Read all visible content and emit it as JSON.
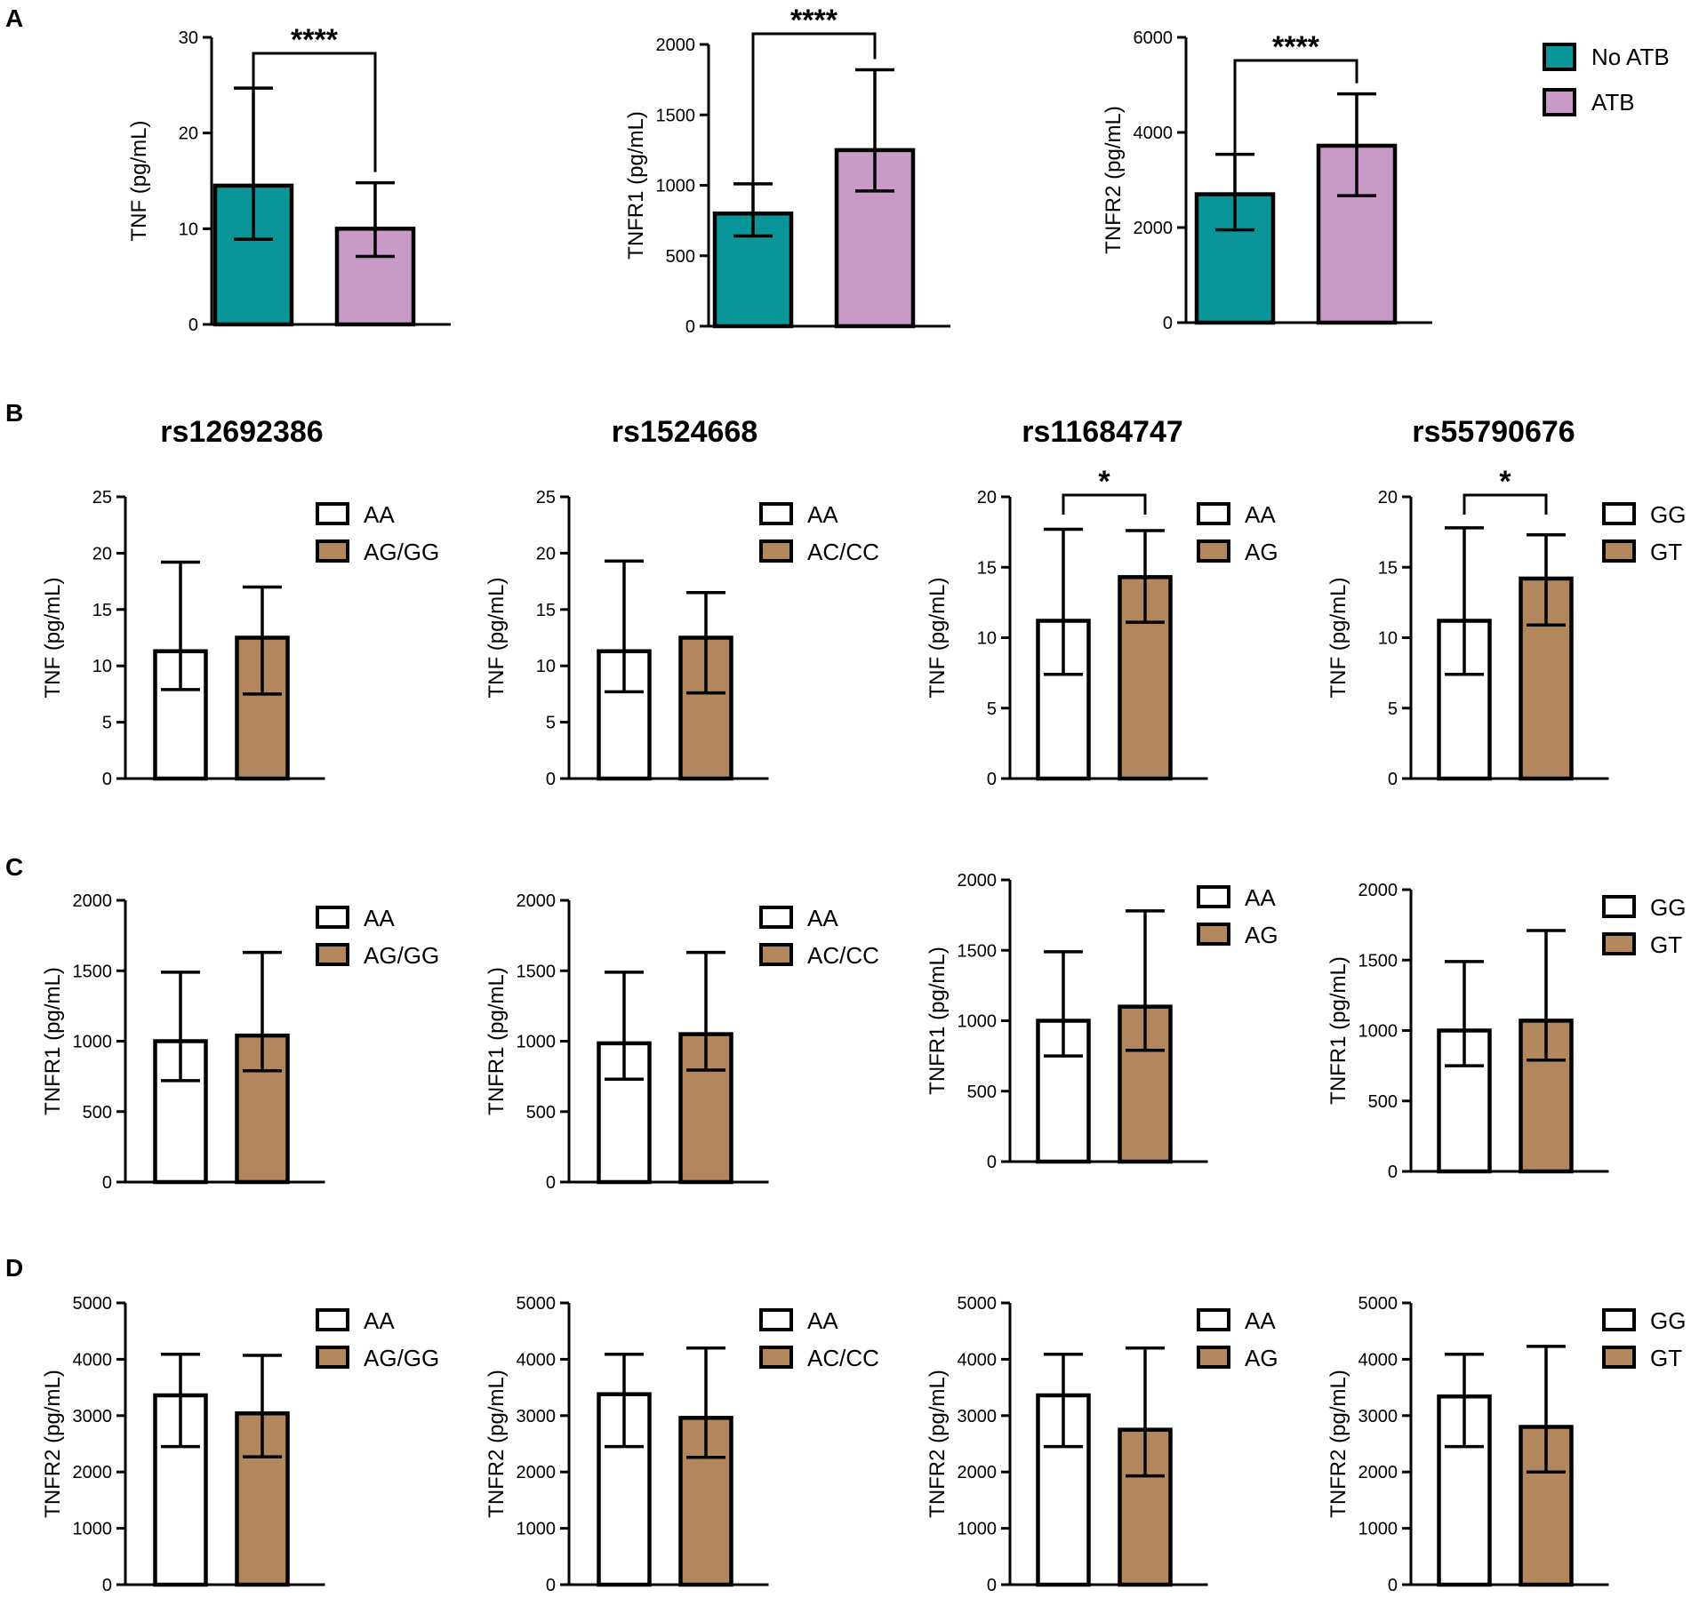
{
  "colors": {
    "no_atb": "#0a9599",
    "atb": "#c99ac8",
    "genotype_ref": "#ffffff",
    "genotype_alt": "#b2875e",
    "ink": "#000000"
  },
  "panels": {
    "A": "A",
    "B": "B",
    "C": "C",
    "D": "D"
  },
  "snp_titles": [
    "rs12692386",
    "rs1524668",
    "rs11684747",
    "rs55790676"
  ],
  "legend_A": [
    {
      "label": "No ATB",
      "color": "#0a9599"
    },
    {
      "label": "ATB",
      "color": "#c99ac8"
    }
  ],
  "chart_data": [
    {
      "id": "A1",
      "type": "bar",
      "title": "",
      "xlabel": "",
      "ylabel": "TNF (pg/mL)",
      "ylim": [
        0,
        30
      ],
      "yticks": [
        "0",
        "10",
        "20",
        "30"
      ],
      "categories": [
        "No ATB",
        "ATB"
      ],
      "values": [
        14.5,
        10
      ],
      "error_low": [
        8.9,
        7.1
      ],
      "error_high": [
        24.7,
        14.8
      ],
      "colors": [
        "#0a9599",
        "#c99ac8"
      ],
      "significance": "****",
      "legend": []
    },
    {
      "id": "A2",
      "type": "bar",
      "title": "",
      "xlabel": "",
      "ylabel": "TNFR1 (pg/mL)",
      "ylim": [
        0,
        2000
      ],
      "yticks": [
        "0",
        "500",
        "1000",
        "1500",
        "2000"
      ],
      "categories": [
        "No ATB",
        "ATB"
      ],
      "values": [
        800,
        1250
      ],
      "error_low": [
        640,
        960
      ],
      "error_high": [
        1010,
        1820
      ],
      "colors": [
        "#0a9599",
        "#c99ac8"
      ],
      "significance": "****",
      "legend": []
    },
    {
      "id": "A3",
      "type": "bar",
      "title": "",
      "xlabel": "",
      "ylabel": "TNFR2 (pg/mL)",
      "ylim": [
        0,
        6000
      ],
      "yticks": [
        "0",
        "2000",
        "4000",
        "6000"
      ],
      "categories": [
        "No ATB",
        "ATB"
      ],
      "values": [
        2700,
        3720
      ],
      "error_low": [
        1950,
        2670
      ],
      "error_high": [
        3540,
        4810
      ],
      "colors": [
        "#0a9599",
        "#c99ac8"
      ],
      "significance": "****",
      "legend": []
    },
    {
      "id": "B1",
      "type": "bar",
      "title": "rs12692386",
      "xlabel": "",
      "ylabel": "TNF (pg/mL)",
      "ylim": [
        0,
        25
      ],
      "yticks": [
        "0",
        "5",
        "10",
        "15",
        "20",
        "25"
      ],
      "categories": [
        "AA",
        "AG/GG"
      ],
      "values": [
        11.3,
        12.5
      ],
      "error_low": [
        7.9,
        7.5
      ],
      "error_high": [
        19.2,
        17.0
      ],
      "colors": [
        "#ffffff",
        "#b2875e"
      ],
      "significance": "",
      "legend": [
        {
          "label": "AA",
          "color": "#ffffff"
        },
        {
          "label": "AG/GG",
          "color": "#b2875e"
        }
      ]
    },
    {
      "id": "B2",
      "type": "bar",
      "title": "rs1524668",
      "xlabel": "",
      "ylabel": "TNF (pg/mL)",
      "ylim": [
        0,
        25
      ],
      "yticks": [
        "0",
        "5",
        "10",
        "15",
        "20",
        "25"
      ],
      "categories": [
        "AA",
        "AC/CC"
      ],
      "values": [
        11.3,
        12.5
      ],
      "error_low": [
        7.7,
        7.6
      ],
      "error_high": [
        19.3,
        16.5
      ],
      "colors": [
        "#ffffff",
        "#b2875e"
      ],
      "significance": "",
      "legend": [
        {
          "label": "AA",
          "color": "#ffffff"
        },
        {
          "label": "AC/CC",
          "color": "#b2875e"
        }
      ]
    },
    {
      "id": "B3",
      "type": "bar",
      "title": "rs11684747",
      "xlabel": "",
      "ylabel": "TNF (pg/mL)",
      "ylim": [
        0,
        20
      ],
      "yticks": [
        "0",
        "5",
        "10",
        "15",
        "20"
      ],
      "categories": [
        "AA",
        "AG"
      ],
      "values": [
        11.2,
        14.3
      ],
      "error_low": [
        7.4,
        11.1
      ],
      "error_high": [
        17.7,
        17.6
      ],
      "colors": [
        "#ffffff",
        "#b2875e"
      ],
      "significance": "*",
      "legend": [
        {
          "label": "AA",
          "color": "#ffffff"
        },
        {
          "label": "AG",
          "color": "#b2875e"
        }
      ]
    },
    {
      "id": "B4",
      "type": "bar",
      "title": "rs55790676",
      "xlabel": "",
      "ylabel": "TNF (pg/mL)",
      "ylim": [
        0,
        20
      ],
      "yticks": [
        "0",
        "5",
        "10",
        "15",
        "20"
      ],
      "categories": [
        "GG",
        "GT"
      ],
      "values": [
        11.2,
        14.2
      ],
      "error_low": [
        7.4,
        10.9
      ],
      "error_high": [
        17.8,
        17.3
      ],
      "colors": [
        "#ffffff",
        "#b2875e"
      ],
      "significance": "*",
      "legend": [
        {
          "label": "GG",
          "color": "#ffffff"
        },
        {
          "label": "GT",
          "color": "#b2875e"
        }
      ]
    },
    {
      "id": "C1",
      "type": "bar",
      "title": "",
      "xlabel": "",
      "ylabel": "TNFR1 (pg/mL)",
      "ylim": [
        0,
        2000
      ],
      "yticks": [
        "0",
        "500",
        "1000",
        "1500",
        "2000"
      ],
      "categories": [
        "AA",
        "AG/GG"
      ],
      "values": [
        1000,
        1040
      ],
      "error_low": [
        720,
        790
      ],
      "error_high": [
        1490,
        1630
      ],
      "colors": [
        "#ffffff",
        "#b2875e"
      ],
      "significance": "",
      "legend": [
        {
          "label": "AA",
          "color": "#ffffff"
        },
        {
          "label": "AG/GG",
          "color": "#b2875e"
        }
      ]
    },
    {
      "id": "C2",
      "type": "bar",
      "title": "",
      "xlabel": "",
      "ylabel": "TNFR1 (pg/mL)",
      "ylim": [
        0,
        2000
      ],
      "yticks": [
        "0",
        "500",
        "1000",
        "1500",
        "2000"
      ],
      "categories": [
        "AA",
        "AC/CC"
      ],
      "values": [
        985,
        1050
      ],
      "error_low": [
        730,
        795
      ],
      "error_high": [
        1490,
        1630
      ],
      "colors": [
        "#ffffff",
        "#b2875e"
      ],
      "significance": "",
      "legend": [
        {
          "label": "AA",
          "color": "#ffffff"
        },
        {
          "label": "AC/CC",
          "color": "#b2875e"
        }
      ]
    },
    {
      "id": "C3",
      "type": "bar",
      "title": "",
      "xlabel": "",
      "ylabel": "TNFR1 (pg/mL)",
      "ylim": [
        0,
        2000
      ],
      "yticks": [
        "0",
        "500",
        "1000",
        "1500",
        "2000"
      ],
      "categories": [
        "AA",
        "AG"
      ],
      "values": [
        1000,
        1100
      ],
      "error_low": [
        750,
        790
      ],
      "error_high": [
        1490,
        1780
      ],
      "colors": [
        "#ffffff",
        "#b2875e"
      ],
      "significance": "",
      "legend": [
        {
          "label": "AA",
          "color": "#ffffff"
        },
        {
          "label": "AG",
          "color": "#b2875e"
        }
      ]
    },
    {
      "id": "C4",
      "type": "bar",
      "title": "",
      "xlabel": "",
      "ylabel": "TNFR1 (pg/mL)",
      "ylim": [
        0,
        2000
      ],
      "yticks": [
        "0",
        "500",
        "1000",
        "1500",
        "2000"
      ],
      "categories": [
        "GG",
        "GT"
      ],
      "values": [
        1000,
        1070
      ],
      "error_low": [
        750,
        790
      ],
      "error_high": [
        1490,
        1710
      ],
      "colors": [
        "#ffffff",
        "#b2875e"
      ],
      "significance": "",
      "legend": [
        {
          "label": "GG",
          "color": "#ffffff"
        },
        {
          "label": "GT",
          "color": "#b2875e"
        }
      ]
    },
    {
      "id": "D1",
      "type": "bar",
      "title": "",
      "xlabel": "",
      "ylabel": "TNFR2 (pg/mL)",
      "ylim": [
        0,
        5000
      ],
      "yticks": [
        "0",
        "1000",
        "2000",
        "3000",
        "4000",
        "5000"
      ],
      "categories": [
        "AA",
        "AG/GG"
      ],
      "values": [
        3360,
        3040
      ],
      "error_low": [
        2450,
        2270
      ],
      "error_high": [
        4090,
        4070
      ],
      "colors": [
        "#ffffff",
        "#b2875e"
      ],
      "significance": "",
      "legend": [
        {
          "label": "AA",
          "color": "#ffffff"
        },
        {
          "label": "AG/GG",
          "color": "#b2875e"
        }
      ]
    },
    {
      "id": "D2",
      "type": "bar",
      "title": "",
      "xlabel": "",
      "ylabel": "TNFR2 (pg/mL)",
      "ylim": [
        0,
        5000
      ],
      "yticks": [
        "0",
        "1000",
        "2000",
        "3000",
        "4000",
        "5000"
      ],
      "categories": [
        "AA",
        "AC/CC"
      ],
      "values": [
        3380,
        2960
      ],
      "error_low": [
        2450,
        2260
      ],
      "error_high": [
        4090,
        4200
      ],
      "colors": [
        "#ffffff",
        "#b2875e"
      ],
      "significance": "",
      "legend": [
        {
          "label": "AA",
          "color": "#ffffff"
        },
        {
          "label": "AC/CC",
          "color": "#b2875e"
        }
      ]
    },
    {
      "id": "D3",
      "type": "bar",
      "title": "",
      "xlabel": "",
      "ylabel": "TNFR2 (pg/mL)",
      "ylim": [
        0,
        5000
      ],
      "yticks": [
        "0",
        "1000",
        "2000",
        "3000",
        "4000",
        "5000"
      ],
      "categories": [
        "AA",
        "AG"
      ],
      "values": [
        3360,
        2750
      ],
      "error_low": [
        2450,
        1930
      ],
      "error_high": [
        4090,
        4200
      ],
      "colors": [
        "#ffffff",
        "#b2875e"
      ],
      "significance": "",
      "legend": [
        {
          "label": "AA",
          "color": "#ffffff"
        },
        {
          "label": "AG",
          "color": "#b2875e"
        }
      ]
    },
    {
      "id": "D4",
      "type": "bar",
      "title": "",
      "xlabel": "",
      "ylabel": "TNFR2 (pg/mL)",
      "ylim": [
        0,
        5000
      ],
      "yticks": [
        "0",
        "1000",
        "2000",
        "3000",
        "4000",
        "5000"
      ],
      "categories": [
        "GG",
        "GT"
      ],
      "values": [
        3340,
        2800
      ],
      "error_low": [
        2450,
        2000
      ],
      "error_high": [
        4090,
        4230
      ],
      "colors": [
        "#ffffff",
        "#b2875e"
      ],
      "significance": "",
      "legend": [
        {
          "label": "GG",
          "color": "#ffffff"
        },
        {
          "label": "GT",
          "color": "#b2875e"
        }
      ]
    }
  ]
}
